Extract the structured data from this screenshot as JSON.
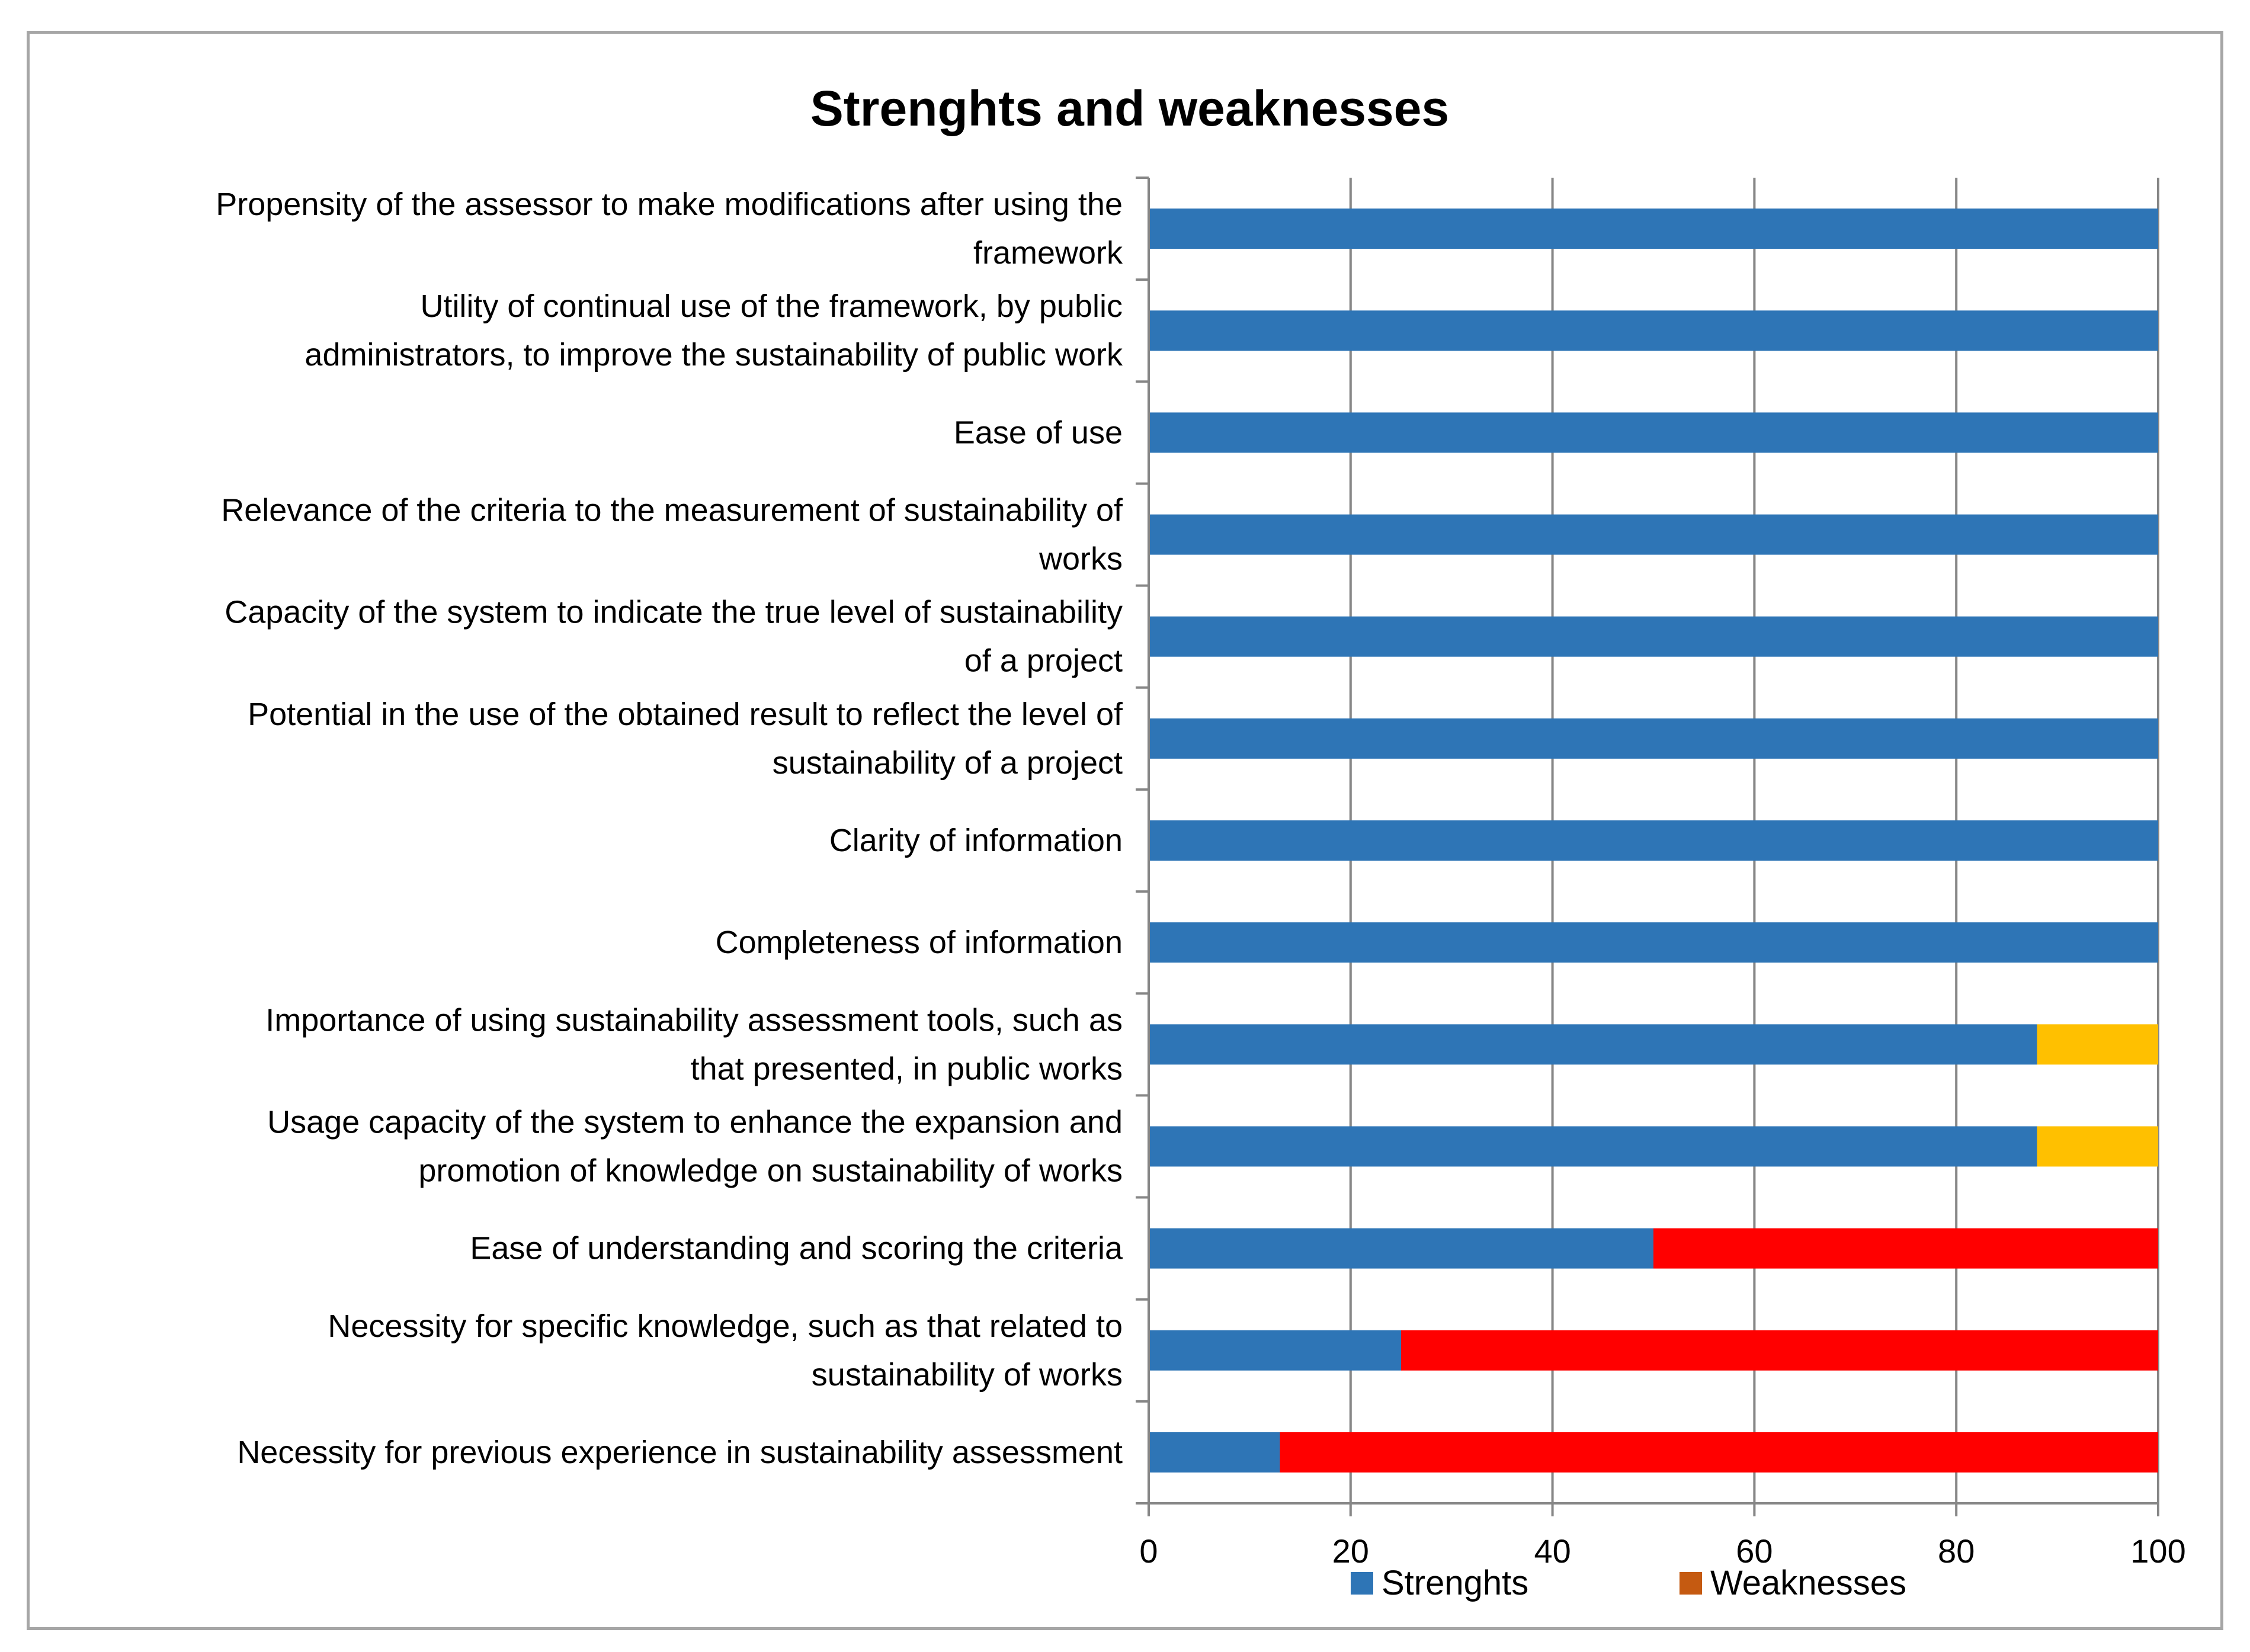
{
  "chart_data": {
    "type": "bar",
    "orientation": "horizontal",
    "stacked": true,
    "title": "Strenghts and weaknesses",
    "xlabel": "",
    "ylabel": "",
    "xlim": [
      0,
      100
    ],
    "xticks": [
      0,
      20,
      40,
      60,
      80,
      100
    ],
    "grid": true,
    "legend_position": "bottom",
    "categories": [
      [
        "Propensity of the assessor to make modifications after using the",
        "framework"
      ],
      [
        "Utility of continual use of the framework, by public",
        "administrators, to improve the sustainability of public work"
      ],
      [
        "Ease of use"
      ],
      [
        "Relevance of the criteria to the measurement of sustainability of",
        "works"
      ],
      [
        "Capacity of the system to indicate the true level of sustainability",
        "of a project"
      ],
      [
        "Potential in the use of the obtained result to reflect the level of",
        "sustainability of a project"
      ],
      [
        "Clarity of information"
      ],
      [
        "Completeness of information"
      ],
      [
        "Importance of using sustainability assessment tools, such as",
        "that presented, in public works"
      ],
      [
        "Usage capacity of the system to enhance the expansion and",
        "promotion of knowledge on sustainability of works"
      ],
      [
        "Ease of understanding and scoring the criteria"
      ],
      [
        "Necessity for specific knowledge, such as that related to",
        "sustainability of works"
      ],
      [
        "Necessity for previous experience in sustainability assessment"
      ]
    ],
    "series": [
      {
        "name": "Strenghts",
        "color": "#2e75b6",
        "values": [
          100,
          100,
          100,
          100,
          100,
          100,
          100,
          100,
          88,
          88,
          50,
          25,
          13
        ]
      },
      {
        "name": "Weaknesses",
        "legend_color": "#c55a11",
        "values": [
          0,
          0,
          0,
          0,
          0,
          0,
          0,
          0,
          12,
          12,
          50,
          75,
          87
        ],
        "value_colors": [
          "#ff0000",
          "#ff0000",
          "#ff0000",
          "#ff0000",
          "#ff0000",
          "#ff0000",
          "#ff0000",
          "#ff0000",
          "#ffc000",
          "#ffc000",
          "#ff0000",
          "#ff0000",
          "#ff0000"
        ]
      }
    ]
  }
}
